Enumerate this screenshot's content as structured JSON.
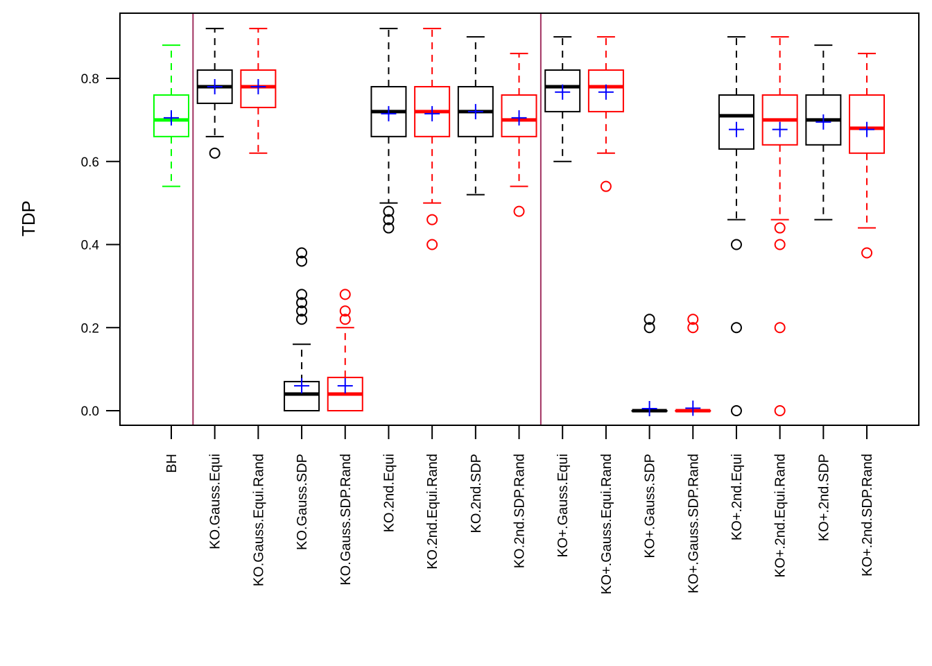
{
  "chart_data": {
    "type": "boxplot",
    "title": "",
    "xlabel": "",
    "ylabel": "TDP",
    "ylim": [
      -0.035,
      0.955
    ],
    "yticks": [
      0.0,
      0.2,
      0.4,
      0.6,
      0.8
    ],
    "ytick_labels": [
      "0.0",
      "0.2",
      "0.4",
      "0.6",
      "0.8"
    ],
    "grid": false,
    "legend": "none",
    "separators_after_index": [
      0,
      8
    ],
    "colors": {
      "green": "#00ff00",
      "black": "#000000",
      "red": "#ff0000",
      "mean_marker": "#0000ff",
      "separator": "#a0305f"
    },
    "categories": [
      "BH",
      "KO.Gauss.Equi",
      "KO.Gauss.Equi.Rand",
      "KO.Gauss.SDP",
      "KO.Gauss.SDP.Rand",
      "KO.2nd.Equi",
      "KO.2nd.Equi.Rand",
      "KO.2nd.SDP",
      "KO.2nd.SDP.Rand",
      "KO+.Gauss.Equi",
      "KO+.Gauss.Equi.Rand",
      "KO+.Gauss.SDP",
      "KO+.Gauss.SDP.Rand",
      "KO+.2nd.Equi",
      "KO+.2nd.Equi.Rand",
      "KO+.2nd.SDP",
      "KO+.2nd.SDP.Rand"
    ],
    "boxes": [
      {
        "name": "BH",
        "color": "green",
        "whisker_low": 0.54,
        "q1": 0.66,
        "median": 0.7,
        "q3": 0.76,
        "whisker_high": 0.88,
        "mean": 0.705,
        "outliers": []
      },
      {
        "name": "KO.Gauss.Equi",
        "color": "black",
        "whisker_low": 0.66,
        "q1": 0.74,
        "median": 0.78,
        "q3": 0.82,
        "whisker_high": 0.92,
        "mean": 0.78,
        "outliers": [
          0.62
        ]
      },
      {
        "name": "KO.Gauss.Equi.Rand",
        "color": "red",
        "whisker_low": 0.62,
        "q1": 0.73,
        "median": 0.78,
        "q3": 0.82,
        "whisker_high": 0.92,
        "mean": 0.78,
        "outliers": []
      },
      {
        "name": "KO.Gauss.SDP",
        "color": "black",
        "whisker_low": 0.0,
        "q1": 0.0,
        "median": 0.04,
        "q3": 0.07,
        "whisker_high": 0.16,
        "mean": 0.06,
        "outliers": [
          0.22,
          0.24,
          0.26,
          0.28,
          0.36,
          0.38
        ]
      },
      {
        "name": "KO.Gauss.SDP.Rand",
        "color": "red",
        "whisker_low": 0.0,
        "q1": 0.0,
        "median": 0.04,
        "q3": 0.08,
        "whisker_high": 0.2,
        "mean": 0.06,
        "outliers": [
          0.22,
          0.24,
          0.28
        ]
      },
      {
        "name": "KO.2nd.Equi",
        "color": "black",
        "whisker_low": 0.5,
        "q1": 0.66,
        "median": 0.72,
        "q3": 0.78,
        "whisker_high": 0.92,
        "mean": 0.715,
        "outliers": [
          0.44,
          0.46,
          0.48
        ]
      },
      {
        "name": "KO.2nd.Equi.Rand",
        "color": "red",
        "whisker_low": 0.5,
        "q1": 0.66,
        "median": 0.72,
        "q3": 0.78,
        "whisker_high": 0.92,
        "mean": 0.715,
        "outliers": [
          0.4,
          0.46
        ]
      },
      {
        "name": "KO.2nd.SDP",
        "color": "black",
        "whisker_low": 0.52,
        "q1": 0.66,
        "median": 0.72,
        "q3": 0.78,
        "whisker_high": 0.9,
        "mean": 0.72,
        "outliers": []
      },
      {
        "name": "KO.2nd.SDP.Rand",
        "color": "red",
        "whisker_low": 0.54,
        "q1": 0.66,
        "median": 0.7,
        "q3": 0.76,
        "whisker_high": 0.86,
        "mean": 0.705,
        "outliers": [
          0.48
        ]
      },
      {
        "name": "KO+.Gauss.Equi",
        "color": "black",
        "whisker_low": 0.6,
        "q1": 0.72,
        "median": 0.78,
        "q3": 0.82,
        "whisker_high": 0.9,
        "mean": 0.767,
        "outliers": []
      },
      {
        "name": "KO+.Gauss.Equi.Rand",
        "color": "red",
        "whisker_low": 0.62,
        "q1": 0.72,
        "median": 0.78,
        "q3": 0.82,
        "whisker_high": 0.9,
        "mean": 0.767,
        "outliers": [
          0.54
        ]
      },
      {
        "name": "KO+.Gauss.SDP",
        "color": "black",
        "whisker_low": 0.0,
        "q1": 0.0,
        "median": 0.0,
        "q3": 0.0,
        "whisker_high": 0.0,
        "mean": 0.005,
        "outliers": [
          0.2,
          0.22
        ]
      },
      {
        "name": "KO+.Gauss.SDP.Rand",
        "color": "red",
        "whisker_low": 0.0,
        "q1": 0.0,
        "median": 0.0,
        "q3": 0.0,
        "whisker_high": 0.0,
        "mean": 0.006,
        "outliers": [
          0.2,
          0.22
        ]
      },
      {
        "name": "KO+.2nd.Equi",
        "color": "black",
        "whisker_low": 0.46,
        "q1": 0.63,
        "median": 0.71,
        "q3": 0.76,
        "whisker_high": 0.9,
        "mean": 0.677,
        "outliers": [
          0.0,
          0.2,
          0.4
        ]
      },
      {
        "name": "KO+.2nd.Equi.Rand",
        "color": "red",
        "whisker_low": 0.46,
        "q1": 0.64,
        "median": 0.7,
        "q3": 0.76,
        "whisker_high": 0.9,
        "mean": 0.677,
        "outliers": [
          0.0,
          0.2,
          0.4,
          0.44
        ]
      },
      {
        "name": "KO+.2nd.SDP",
        "color": "black",
        "whisker_low": 0.46,
        "q1": 0.64,
        "median": 0.7,
        "q3": 0.76,
        "whisker_high": 0.88,
        "mean": 0.695,
        "outliers": []
      },
      {
        "name": "KO+.2nd.SDP.Rand",
        "color": "red",
        "whisker_low": 0.44,
        "q1": 0.62,
        "median": 0.68,
        "q3": 0.76,
        "whisker_high": 0.86,
        "mean": 0.677,
        "outliers": [
          0.38
        ]
      }
    ]
  }
}
